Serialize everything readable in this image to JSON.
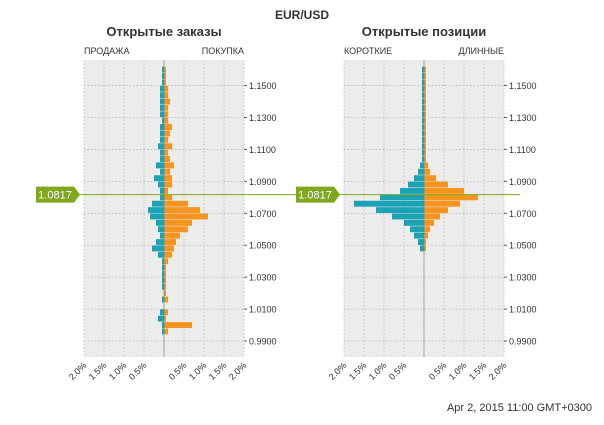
{
  "symbol": "EUR/USD",
  "timestamp": "Apr 2, 2015 11:00 GMT+0300",
  "current_price": "1.0817",
  "colors": {
    "buy": "#f7941d",
    "sell": "#1ba3b5",
    "price_line": "#7fa81e",
    "panel": "#ececec",
    "grid": "#b8b8b8"
  },
  "chart_data": [
    {
      "type": "bar",
      "title": "Открытые заказы",
      "left_label": "ПРОДАЖА",
      "right_label": "ПОКУПКА",
      "ylim": [
        0.98,
        1.166
      ],
      "y_ticks": [
        "1.1500",
        "1.1300",
        "1.1100",
        "1.0900",
        "1.0700",
        "1.0500",
        "1.0300",
        "1.0100",
        "0.9900"
      ],
      "x_ticks": [
        "2.0%",
        "1.5%",
        "1.0%",
        "0.5%",
        "",
        "0.5%",
        "1.0%",
        "1.5%",
        "2.0%"
      ],
      "xlim": [
        -2.0,
        2.0
      ],
      "series": [
        {
          "name": "ПРОДАЖА",
          "price": [
            1.16,
            1.156,
            1.152,
            1.148,
            1.144,
            1.14,
            1.136,
            1.132,
            1.128,
            1.124,
            1.12,
            1.116,
            1.112,
            1.108,
            1.104,
            1.1,
            1.096,
            1.092,
            1.088,
            1.084,
            1.08,
            1.076,
            1.072,
            1.068,
            1.064,
            1.06,
            1.056,
            1.052,
            1.048,
            1.044,
            1.04,
            1.036,
            1.032,
            1.028,
            1.024,
            1.02,
            1.016,
            1.012,
            1.008,
            1.004,
            1.0,
            0.996
          ],
          "values": [
            0.05,
            0.05,
            0.05,
            0.1,
            0.1,
            0.1,
            0.1,
            0.1,
            0.05,
            0.1,
            0.1,
            0.1,
            0.15,
            0.1,
            0.1,
            0.2,
            0.1,
            0.25,
            0.15,
            0.1,
            0.1,
            0.3,
            0.4,
            0.35,
            0.2,
            0.15,
            0.1,
            0.2,
            0.3,
            0.15,
            0.05,
            0.05,
            0.05,
            0.05,
            0.05,
            0.0,
            0.05,
            0.0,
            0.1,
            0.15,
            0.05,
            0.05
          ]
        },
        {
          "name": "ПОКУПКА",
          "price": [
            1.16,
            1.156,
            1.152,
            1.148,
            1.144,
            1.14,
            1.136,
            1.132,
            1.128,
            1.124,
            1.12,
            1.116,
            1.112,
            1.108,
            1.104,
            1.1,
            1.096,
            1.092,
            1.088,
            1.084,
            1.08,
            1.076,
            1.072,
            1.068,
            1.064,
            1.06,
            1.056,
            1.052,
            1.048,
            1.044,
            1.04,
            1.036,
            1.032,
            1.028,
            1.024,
            1.02,
            1.016,
            1.012,
            1.008,
            1.004,
            1.0,
            0.996
          ],
          "values": [
            0.05,
            0.05,
            0.05,
            0.1,
            0.1,
            0.15,
            0.1,
            0.1,
            0.1,
            0.2,
            0.15,
            0.1,
            0.2,
            0.1,
            0.15,
            0.25,
            0.15,
            0.2,
            0.2,
            0.1,
            0.2,
            0.6,
            0.9,
            1.1,
            0.7,
            0.6,
            0.4,
            0.3,
            0.25,
            0.2,
            0.1,
            0.05,
            0.05,
            0.05,
            0.05,
            0.05,
            0.1,
            0.0,
            0.1,
            0.05,
            0.7,
            0.1
          ]
        }
      ]
    },
    {
      "type": "bar",
      "title": "Открытые позиции",
      "left_label": "КОРОТКИЕ",
      "right_label": "ДЛИННЫЕ",
      "ylim": [
        0.98,
        1.166
      ],
      "y_ticks": [
        "1.1500",
        "1.1300",
        "1.1100",
        "1.0900",
        "1.0700",
        "1.0500",
        "1.0300",
        "1.0100",
        "0.9900"
      ],
      "x_ticks": [
        "2.0%",
        "1.5%",
        "1.0%",
        "0.5%",
        "",
        "0.5%",
        "1.0%",
        "1.5%",
        "2.0%"
      ],
      "xlim": [
        -2.0,
        2.0
      ],
      "series": [
        {
          "name": "КОРОТКИЕ",
          "price": [
            1.16,
            1.156,
            1.152,
            1.148,
            1.144,
            1.14,
            1.136,
            1.132,
            1.128,
            1.124,
            1.12,
            1.116,
            1.112,
            1.108,
            1.104,
            1.1,
            1.096,
            1.092,
            1.088,
            1.084,
            1.08,
            1.076,
            1.072,
            1.068,
            1.064,
            1.06,
            1.056,
            1.052,
            1.048
          ],
          "values": [
            0.05,
            0.05,
            0.05,
            0.05,
            0.05,
            0.05,
            0.05,
            0.05,
            0.05,
            0.05,
            0.05,
            0.05,
            0.05,
            0.05,
            0.05,
            0.1,
            0.15,
            0.25,
            0.4,
            0.6,
            1.1,
            1.75,
            1.2,
            0.8,
            0.5,
            0.35,
            0.25,
            0.15,
            0.1
          ]
        },
        {
          "name": "ДЛИННЫЕ",
          "price": [
            1.16,
            1.156,
            1.152,
            1.148,
            1.144,
            1.14,
            1.136,
            1.132,
            1.128,
            1.124,
            1.12,
            1.116,
            1.112,
            1.108,
            1.104,
            1.1,
            1.096,
            1.092,
            1.088,
            1.084,
            1.08,
            1.076,
            1.072,
            1.068,
            1.064,
            1.06,
            1.056,
            1.052,
            1.048
          ],
          "values": [
            0.05,
            0.05,
            0.05,
            0.05,
            0.05,
            0.05,
            0.05,
            0.05,
            0.05,
            0.05,
            0.05,
            0.05,
            0.05,
            0.05,
            0.05,
            0.1,
            0.15,
            0.3,
            0.6,
            1.0,
            1.35,
            0.9,
            0.6,
            0.4,
            0.25,
            0.15,
            0.1,
            0.05,
            0.05
          ]
        }
      ]
    }
  ]
}
